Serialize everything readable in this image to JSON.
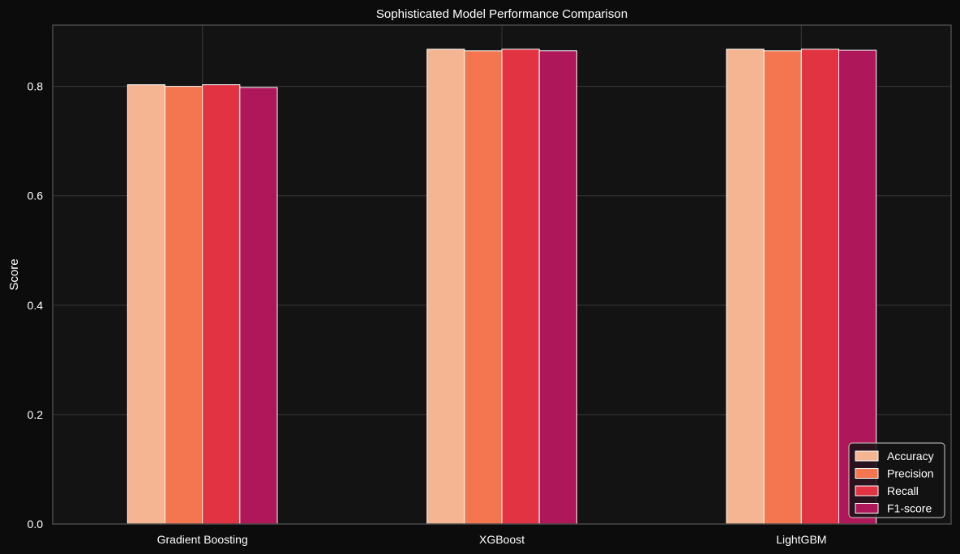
{
  "chart_data": {
    "type": "bar",
    "title": "Sophisticated Model Performance Comparison",
    "xlabel": "",
    "ylabel": "Score",
    "ylim": [
      0,
      0.912
    ],
    "yticks": [
      0.0,
      0.2,
      0.4,
      0.6,
      0.8
    ],
    "ytick_labels": [
      "0.0",
      "0.2",
      "0.4",
      "0.6",
      "0.8"
    ],
    "grid": true,
    "legend_position": "bottom-right",
    "categories": [
      "Gradient Boosting",
      "XGBoost",
      "LightGBM"
    ],
    "series": [
      {
        "name": "Accuracy",
        "color": "#f6b592",
        "values": [
          0.803,
          0.868,
          0.868
        ]
      },
      {
        "name": "Precision",
        "color": "#f37651",
        "values": [
          0.8,
          0.865,
          0.865
        ]
      },
      {
        "name": "Recall",
        "color": "#e13342",
        "values": [
          0.803,
          0.868,
          0.868
        ]
      },
      {
        "name": "F1-score",
        "color": "#ae1759",
        "values": [
          0.798,
          0.865,
          0.866
        ]
      }
    ]
  },
  "colors": {
    "page_background": "#0c0c0c",
    "plot_background": "#131313",
    "grid": "#3a3a3a",
    "axis_frame": "#4a4a4a",
    "text": "#ffffff",
    "bar_edge": "#ffffff"
  }
}
